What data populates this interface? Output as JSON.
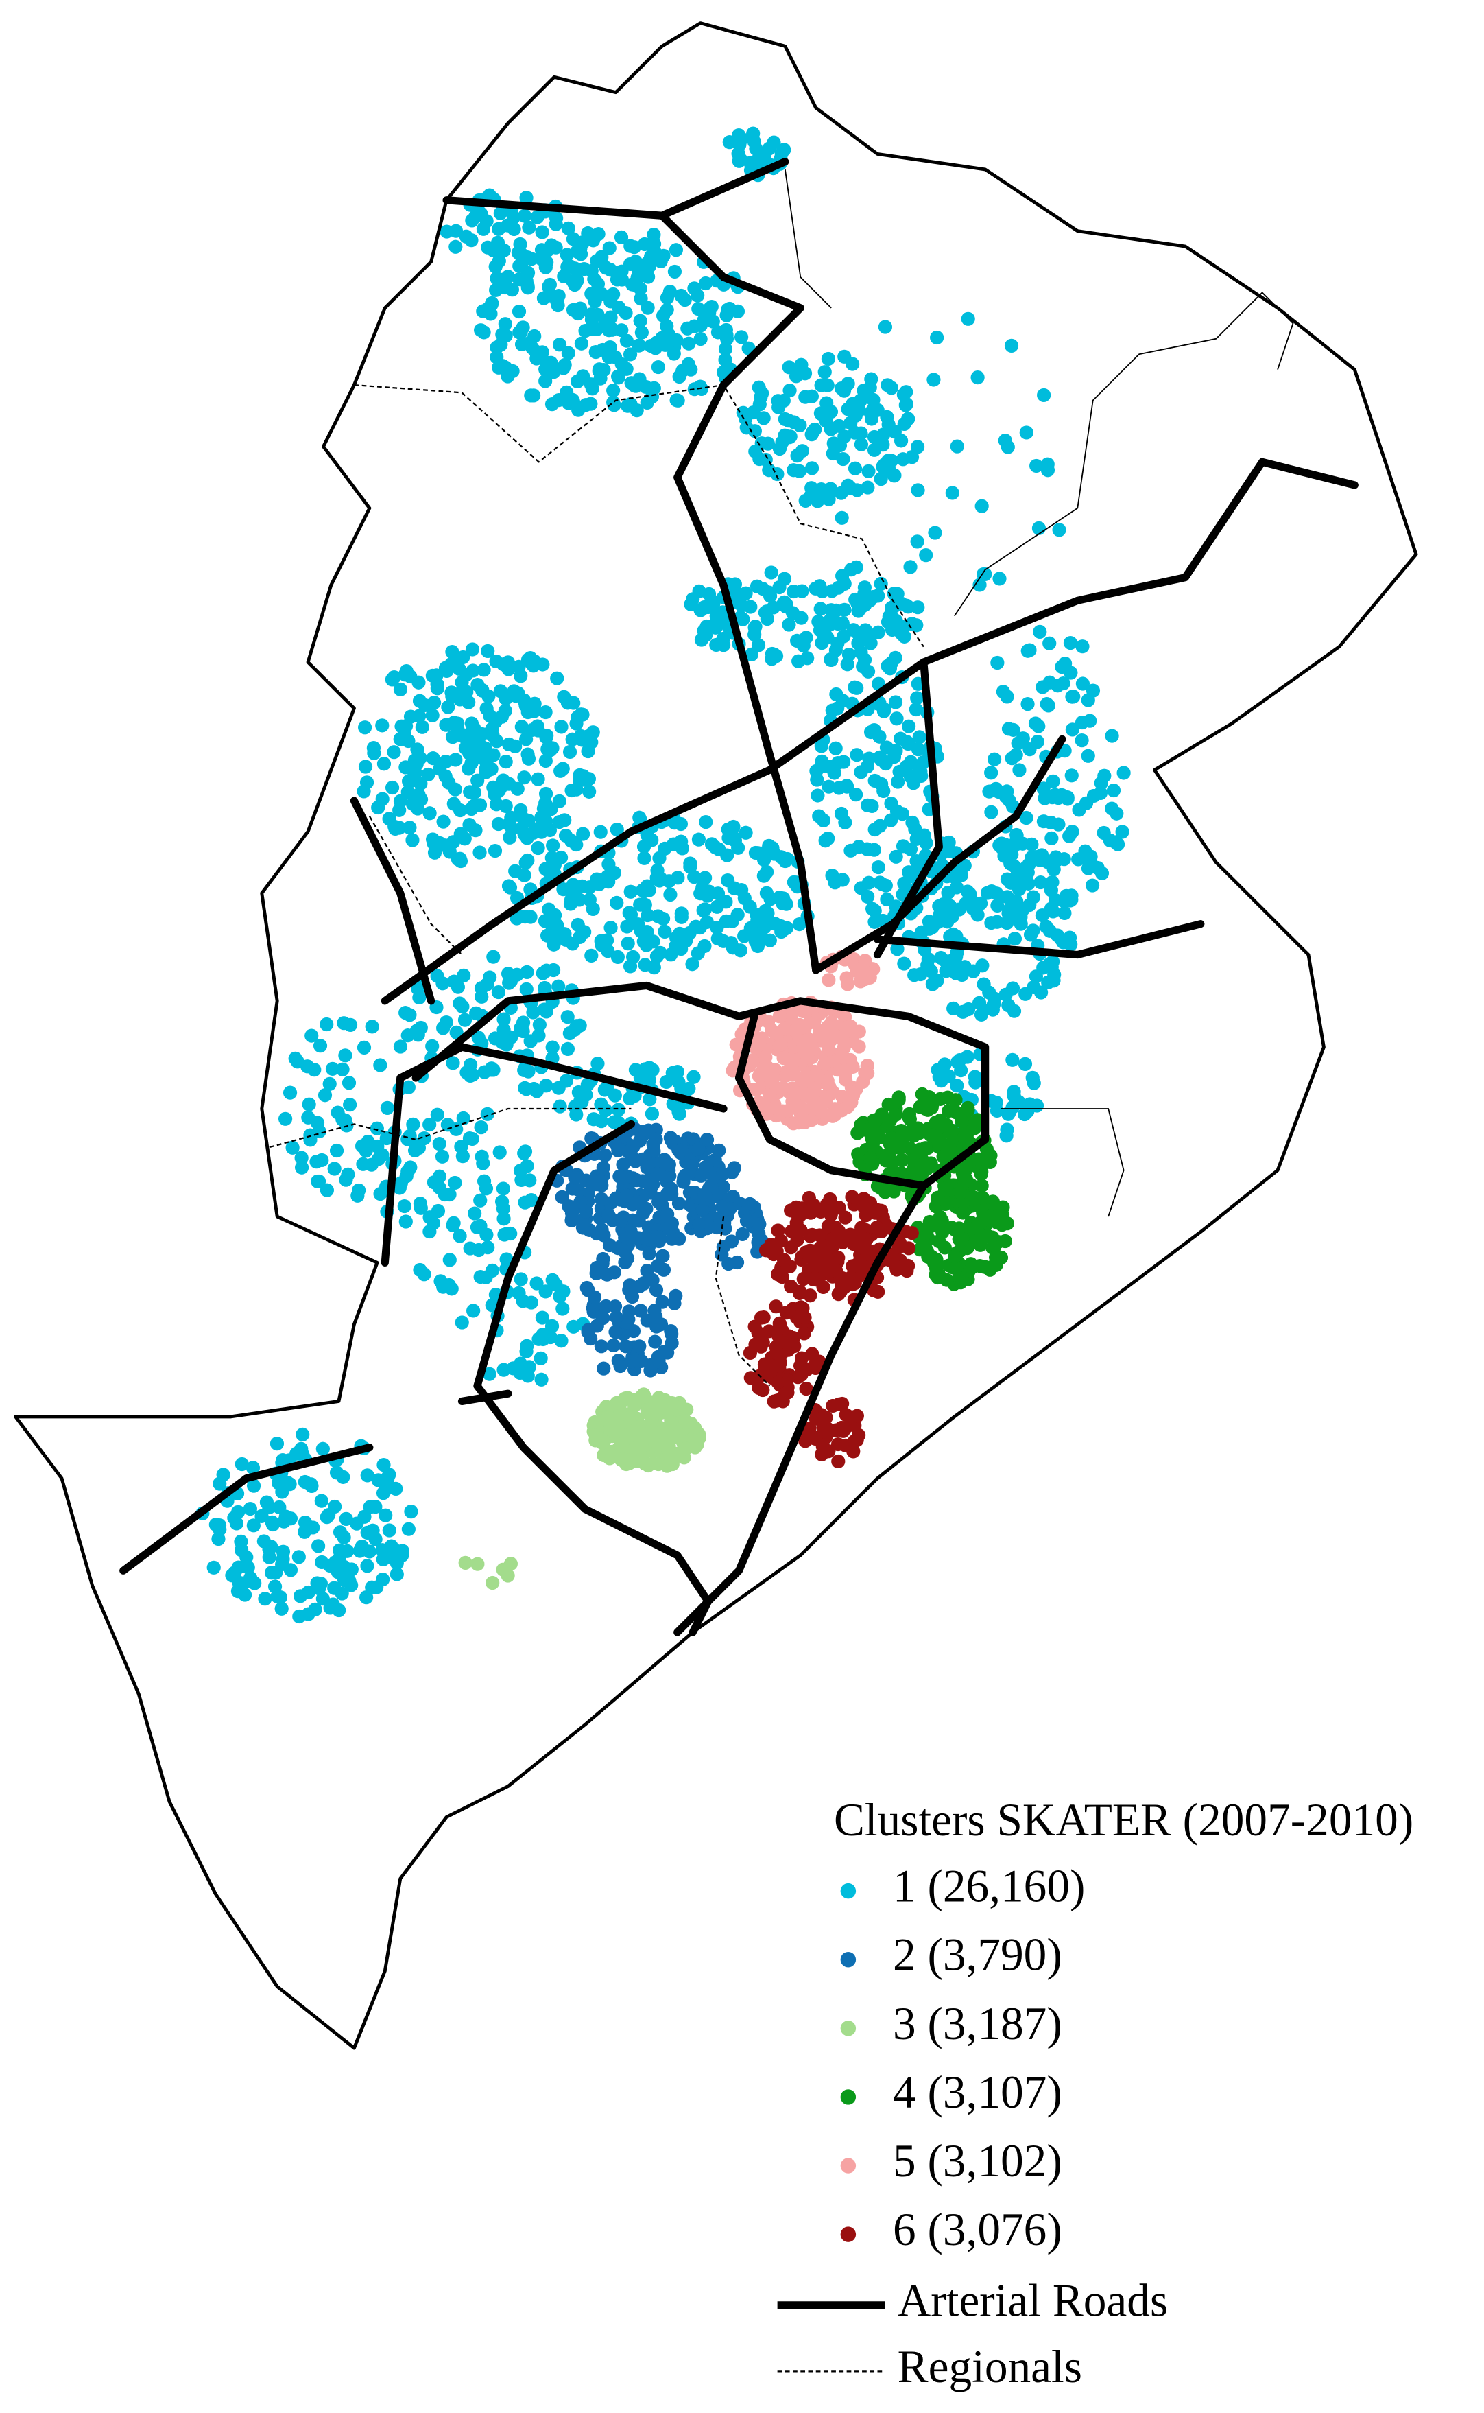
{
  "legend": {
    "title": "Clusters SKATER (2007-2010)",
    "items": [
      {
        "label": "1 (26,160)",
        "color": "#00bcdc"
      },
      {
        "label": "2 (3,790)",
        "color": "#0e6fb3"
      },
      {
        "label": "3 (3,187)",
        "color": "#a3dc8c"
      },
      {
        "label": "4 (3,107)",
        "color": "#0a9a1a"
      },
      {
        "label": "5 (3,102)",
        "color": "#f6a3a3"
      },
      {
        "label": "6 (3,076)",
        "color": "#9a1010"
      }
    ],
    "lines": [
      {
        "label": "Arterial Roads"
      },
      {
        "label": "Regionals"
      }
    ]
  }
}
